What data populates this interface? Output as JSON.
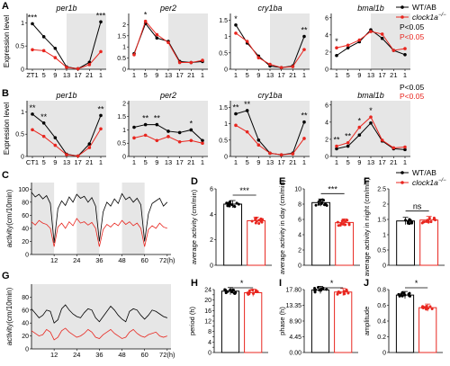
{
  "colors": {
    "wt": "#000000",
    "ko": "#e8261f",
    "shade": "#e6e6e6",
    "bar_fill_wt": "#ffffff",
    "bar_fill_ko": "#ffffff"
  },
  "legend": {
    "wt": "WT/AB",
    "ko": "clock1a",
    "ko_sup": "−/−",
    "p_black": "P<0.05",
    "p_red": "P<0.05"
  },
  "chart_data": [
    {
      "panel": "A",
      "type": "line",
      "title": "per1b",
      "ylabel": "Expression level",
      "x": [
        "ZT1",
        "5",
        "9",
        "13",
        "17",
        "21",
        "1"
      ],
      "ylim": [
        0,
        1.2
      ],
      "yticks": [
        0,
        0.5,
        1.0
      ],
      "shade": [
        3,
        6
      ],
      "series": [
        {
          "name": "WT/AB",
          "values": [
            0.98,
            0.7,
            0.45,
            0.05,
            0.01,
            0.15,
            1.02
          ]
        },
        {
          "name": "clock1a",
          "values": [
            0.42,
            0.4,
            0.25,
            0.04,
            0.01,
            0.1,
            0.38
          ]
        }
      ],
      "stars": [
        {
          "i": 0,
          "t": "***"
        },
        {
          "i": 6,
          "t": "***"
        }
      ]
    },
    {
      "panel": "A",
      "type": "line",
      "title": "per2",
      "ylabel": "",
      "x": [
        "1",
        "5",
        "9",
        "13",
        "17",
        "21",
        "1"
      ],
      "ylim": [
        0,
        2.5
      ],
      "yticks": [
        0,
        0.5,
        1.0,
        1.5,
        2.0
      ],
      "shade": [
        3,
        6
      ],
      "series": [
        {
          "name": "WT/AB",
          "values": [
            0.7,
            2.05,
            1.4,
            1.25,
            0.35,
            0.3,
            0.35
          ]
        },
        {
          "name": "clock1a",
          "values": [
            0.65,
            2.15,
            1.55,
            1.2,
            0.3,
            0.3,
            0.4
          ]
        }
      ],
      "stars": [
        {
          "i": 1,
          "t": "*"
        }
      ]
    },
    {
      "panel": "A",
      "type": "line",
      "title": "cry1ba",
      "ylabel": "",
      "x": [
        "1",
        "5",
        "9",
        "13",
        "17",
        "21",
        "1"
      ],
      "ylim": [
        0,
        1.7
      ],
      "yticks": [
        0,
        0.5,
        1.0,
        1.5
      ],
      "shade": [
        3,
        6
      ],
      "series": [
        {
          "name": "WT/AB",
          "values": [
            1.35,
            0.8,
            0.4,
            0.1,
            0.05,
            0.1,
            1.0
          ]
        },
        {
          "name": "clock1a",
          "values": [
            1.1,
            0.85,
            0.35,
            0.15,
            0.05,
            0.08,
            0.6
          ]
        }
      ],
      "stars": [
        {
          "i": 0,
          "t": "*"
        },
        {
          "i": 6,
          "t": "**"
        }
      ]
    },
    {
      "panel": "A",
      "type": "line",
      "title": "bmal1b",
      "ylabel": "",
      "x": [
        "1",
        "5",
        "9",
        "13",
        "17",
        "21",
        "1"
      ],
      "ylim": [
        0,
        6.5
      ],
      "yticks": [
        0,
        2,
        4,
        6
      ],
      "shade": [
        3,
        6
      ],
      "series": [
        {
          "name": "WT/AB",
          "values": [
            1.6,
            2.5,
            3.2,
            4.6,
            3.6,
            2.2,
            1.7
          ]
        },
        {
          "name": "clock1a",
          "values": [
            2.5,
            2.8,
            3.4,
            4.4,
            4.1,
            2.2,
            2.4
          ]
        }
      ],
      "stars": [
        {
          "i": 0,
          "t": "*"
        }
      ]
    },
    {
      "panel": "B",
      "type": "line",
      "title": "per1b",
      "ylabel": "Expression level",
      "x": [
        "CT1",
        "5",
        "9",
        "13",
        "17",
        "21",
        "1"
      ],
      "ylim": [
        0,
        1.25
      ],
      "yticks": [
        0,
        0.5,
        1.0
      ],
      "shade": [
        0,
        6
      ],
      "series": [
        {
          "name": "WT/AB",
          "values": [
            0.95,
            0.75,
            0.42,
            0.05,
            0.01,
            0.28,
            0.92
          ]
        },
        {
          "name": "clock1a",
          "values": [
            0.6,
            0.45,
            0.25,
            0.04,
            0.01,
            0.2,
            0.62
          ]
        }
      ],
      "stars": [
        {
          "i": 0,
          "t": "**"
        },
        {
          "i": 1,
          "t": "**"
        },
        {
          "i": 6,
          "t": "**"
        }
      ]
    },
    {
      "panel": "B",
      "type": "line",
      "title": "per2",
      "ylabel": "",
      "x": [
        "1",
        "5",
        "9",
        "13",
        "17",
        "21",
        "1"
      ],
      "ylim": [
        0,
        2.1
      ],
      "yticks": [
        0,
        0.5,
        1.0,
        1.5,
        2.0
      ],
      "shade": [
        0,
        6
      ],
      "series": [
        {
          "name": "WT/AB",
          "values": [
            1.1,
            1.2,
            1.2,
            0.95,
            0.9,
            1.0,
            0.6
          ]
        },
        {
          "name": "clock1a",
          "values": [
            0.7,
            0.8,
            0.6,
            0.75,
            0.55,
            0.6,
            0.5
          ]
        }
      ],
      "stars": [
        {
          "i": 1,
          "t": "**"
        },
        {
          "i": 2,
          "t": "**"
        },
        {
          "i": 5,
          "t": "*"
        }
      ]
    },
    {
      "panel": "B",
      "type": "line",
      "title": "cry1ba",
      "ylabel": "",
      "x": [
        "1",
        "5",
        "9",
        "13",
        "17",
        "21",
        "1"
      ],
      "ylim": [
        0,
        1.7
      ],
      "yticks": [
        0,
        0.5,
        1.0,
        1.5
      ],
      "shade": [
        0,
        6
      ],
      "series": [
        {
          "name": "WT/AB",
          "values": [
            1.3,
            1.4,
            0.5,
            0.1,
            0.05,
            0.1,
            1.05
          ]
        },
        {
          "name": "clock1a",
          "values": [
            0.95,
            0.75,
            0.35,
            0.1,
            0.05,
            0.08,
            0.55
          ]
        }
      ],
      "stars": [
        {
          "i": 0,
          "t": "**"
        },
        {
          "i": 1,
          "t": "**"
        },
        {
          "i": 6,
          "t": "**"
        }
      ]
    },
    {
      "panel": "B",
      "type": "line",
      "title": "bmal1b",
      "ylabel": "",
      "x": [
        "1",
        "5",
        "9",
        "13",
        "17",
        "21",
        "1"
      ],
      "ylim": [
        0,
        6.5
      ],
      "yticks": [
        0,
        2,
        4,
        6
      ],
      "shade": [
        0,
        6
      ],
      "series": [
        {
          "name": "WT/AB",
          "values": [
            0.9,
            1.2,
            2.5,
            3.9,
            1.8,
            0.9,
            0.8
          ]
        },
        {
          "name": "clock1a",
          "values": [
            1.2,
            1.6,
            3.4,
            4.6,
            1.9,
            1.0,
            1.1
          ]
        }
      ],
      "stars": [
        {
          "i": 0,
          "t": "**"
        },
        {
          "i": 1,
          "t": "**"
        },
        {
          "i": 2,
          "t": "*"
        },
        {
          "i": 3,
          "t": "*"
        }
      ]
    },
    {
      "panel": "C",
      "type": "line",
      "title": "",
      "ylabel": "activity(cm/10min)",
      "xlabel_ticks": [
        "12",
        "24",
        "36",
        "48",
        "60",
        "72(h)"
      ],
      "xlim": [
        0,
        74
      ],
      "ylim": [
        0,
        110
      ],
      "yticks": [
        0,
        20,
        40,
        60,
        80,
        100
      ],
      "shade_bands": [
        [
          0,
          12
        ],
        [
          24,
          36
        ],
        [
          48,
          60
        ]
      ],
      "series": [
        {
          "name": "WT/AB",
          "times": [
            0,
            2,
            4,
            6,
            8,
            10,
            12,
            14,
            16,
            18,
            20,
            22,
            24,
            26,
            28,
            30,
            32,
            34,
            36,
            38,
            40,
            42,
            44,
            46,
            48,
            50,
            52,
            54,
            56,
            58,
            60,
            62,
            64,
            66,
            68,
            70,
            72
          ],
          "values": [
            95,
            88,
            92,
            85,
            90,
            78,
            18,
            70,
            82,
            75,
            88,
            80,
            92,
            86,
            89,
            80,
            87,
            74,
            20,
            65,
            80,
            74,
            85,
            78,
            93,
            84,
            88,
            80,
            86,
            76,
            20,
            62,
            78,
            82,
            86,
            74,
            80
          ]
        },
        {
          "name": "clock1a",
          "times": [
            0,
            2,
            4,
            6,
            8,
            10,
            12,
            14,
            16,
            18,
            20,
            22,
            24,
            26,
            28,
            30,
            32,
            34,
            36,
            38,
            40,
            42,
            44,
            46,
            48,
            50,
            52,
            54,
            56,
            58,
            60,
            62,
            64,
            66,
            68,
            70,
            72
          ],
          "values": [
            50,
            45,
            52,
            48,
            46,
            40,
            12,
            42,
            48,
            40,
            50,
            44,
            55,
            48,
            50,
            45,
            49,
            40,
            12,
            38,
            46,
            42,
            48,
            44,
            52,
            46,
            50,
            44,
            48,
            40,
            12,
            38,
            44,
            40,
            48,
            42,
            40
          ]
        }
      ]
    },
    {
      "panel": "D",
      "type": "bar",
      "ylabel": "average activity (cm/min)",
      "ylim": [
        0,
        6
      ],
      "yticks": [
        0,
        2,
        4,
        6
      ],
      "categories": [
        "WT/AB",
        "clock1a"
      ],
      "values": [
        4.8,
        3.5
      ],
      "sig": "***"
    },
    {
      "panel": "E",
      "type": "bar",
      "ylabel": "average activity in day (cm/min)",
      "ylim": [
        0,
        10
      ],
      "yticks": [
        0,
        2,
        4,
        6,
        8,
        10
      ],
      "categories": [
        "WT/AB",
        "clock1a"
      ],
      "values": [
        8.2,
        5.6
      ],
      "sig": "***"
    },
    {
      "panel": "F",
      "type": "bar",
      "ylabel": "average activity in night (cm/min)",
      "ylim": [
        0,
        2.5
      ],
      "yticks": [
        0.0,
        0.5,
        1.0,
        1.5,
        2.0,
        2.5
      ],
      "categories": [
        "WT/AB",
        "clock1a"
      ],
      "values": [
        1.45,
        1.48
      ],
      "sig": "ns"
    },
    {
      "panel": "G",
      "type": "line",
      "title": "",
      "ylabel": "activity(cm/10min)",
      "xlabel_ticks": [
        "12",
        "24",
        "36",
        "48",
        "60",
        "72(h)"
      ],
      "xlim": [
        0,
        74
      ],
      "ylim": [
        0,
        100
      ],
      "yticks": [
        0,
        20,
        40,
        60,
        80
      ],
      "shade_bands": [
        [
          0,
          74
        ]
      ],
      "series": [
        {
          "name": "WT/AB",
          "times": [
            0,
            2,
            4,
            6,
            8,
            10,
            12,
            14,
            16,
            18,
            20,
            22,
            24,
            26,
            28,
            30,
            32,
            34,
            36,
            38,
            40,
            42,
            44,
            46,
            48,
            50,
            52,
            54,
            56,
            58,
            60,
            62,
            64,
            66,
            68,
            70,
            72
          ],
          "values": [
            62,
            55,
            48,
            52,
            60,
            58,
            40,
            45,
            62,
            68,
            60,
            54,
            50,
            48,
            56,
            62,
            60,
            48,
            42,
            50,
            58,
            66,
            60,
            52,
            46,
            42,
            58,
            62,
            60,
            52,
            46,
            52,
            60,
            58,
            54,
            50,
            48
          ]
        },
        {
          "name": "clock1a",
          "times": [
            0,
            2,
            4,
            6,
            8,
            10,
            12,
            14,
            16,
            18,
            20,
            22,
            24,
            26,
            28,
            30,
            32,
            34,
            36,
            38,
            40,
            42,
            44,
            46,
            48,
            50,
            52,
            54,
            56,
            58,
            60,
            62,
            64,
            66,
            68,
            70,
            72
          ],
          "values": [
            28,
            24,
            20,
            22,
            30,
            26,
            14,
            18,
            28,
            32,
            26,
            22,
            18,
            20,
            24,
            30,
            26,
            18,
            16,
            22,
            26,
            30,
            24,
            20,
            16,
            18,
            26,
            30,
            24,
            20,
            18,
            22,
            24,
            26,
            20,
            18,
            20
          ]
        }
      ]
    },
    {
      "panel": "H",
      "type": "bar",
      "ylabel": "period (h)",
      "ylim": [
        0,
        24
      ],
      "yticks": [
        0,
        2,
        4,
        6,
        8,
        10,
        12,
        14,
        16,
        18,
        20,
        22,
        24
      ],
      "categories": [
        "WT/AB",
        "clock1a"
      ],
      "values": [
        23.4,
        22.8
      ],
      "sig": "*"
    },
    {
      "panel": "I",
      "type": "bar",
      "ylabel": "phase (h)",
      "ylim": [
        0,
        17.8
      ],
      "yticks": [
        0.0,
        4.45,
        8.9,
        13.35,
        17.8
      ],
      "ytick_labels": [
        "0.00",
        "4.45",
        "8.90",
        "13.35",
        "17.80"
      ],
      "categories": [
        "WT/AB",
        "clock1a"
      ],
      "values": [
        17.7,
        17.1
      ],
      "sig": "*"
    },
    {
      "panel": "J",
      "type": "bar",
      "ylabel": "amplitude",
      "ylim": [
        0,
        0.8
      ],
      "yticks": [
        0.0,
        0.2,
        0.4,
        0.6,
        0.8
      ],
      "categories": [
        "WT/AB",
        "clock1a"
      ],
      "values": [
        0.73,
        0.57
      ],
      "sig": "*"
    }
  ],
  "panel_letters": [
    "A",
    "B",
    "C",
    "D",
    "E",
    "F",
    "G",
    "H",
    "I",
    "J"
  ]
}
